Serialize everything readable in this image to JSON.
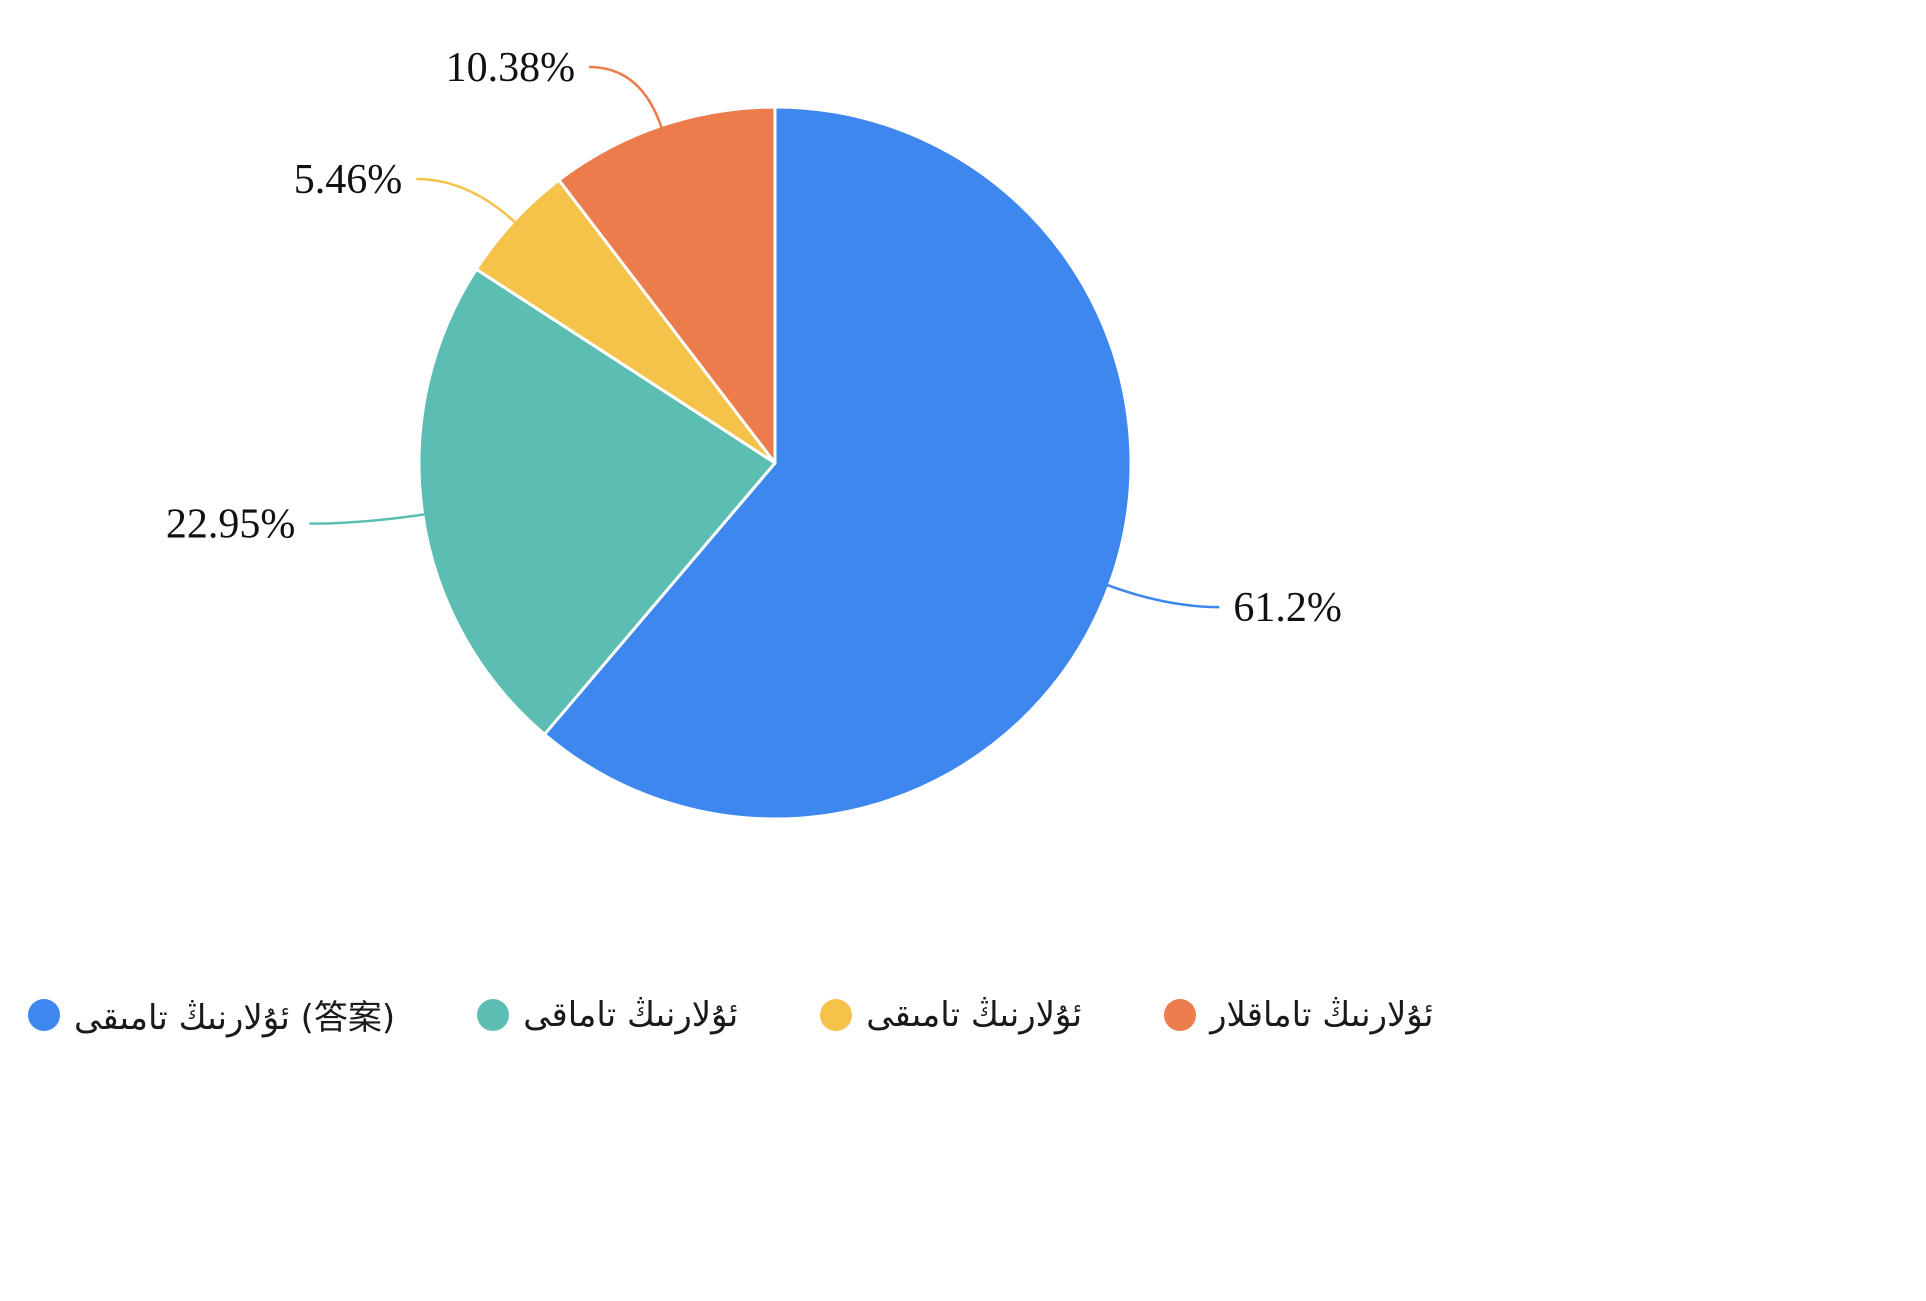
{
  "chart_data": {
    "type": "pie",
    "title": "",
    "legend_position": "bottom",
    "start_angle_deg": 0,
    "direction": "clockwise",
    "background_color": "#ffffff",
    "series": [
      {
        "label": "ئۇلارنىڭ تامىقى (答案)",
        "value": 61.2,
        "percent_label": "61.2%",
        "color": "#3d87ee"
      },
      {
        "label": "ئۇلارنىڭ تاماقى",
        "value": 22.95,
        "percent_label": "22.95%",
        "color": "#5cbeb3"
      },
      {
        "label": "ئۇلارنىڭ تامىقى",
        "value": 5.46,
        "percent_label": "5.46%",
        "color": "#f5c24a"
      },
      {
        "label": "ئۇلارنىڭ تاماقلار",
        "value": 10.38,
        "percent_label": "10.38%",
        "color": "#ec7c4b"
      }
    ]
  }
}
